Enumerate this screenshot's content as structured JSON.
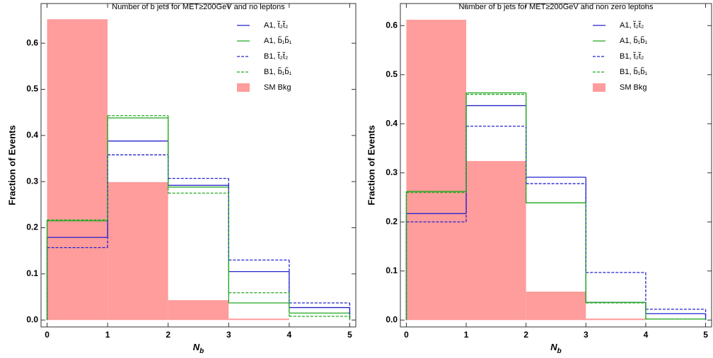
{
  "chart_data": [
    {
      "type": "histogram",
      "title": "Number of b jets for MET≥200GeV and no leptons",
      "x_label": "Nb",
      "y_label": "Fraction of Events",
      "bins": [
        0,
        1,
        2,
        3,
        4,
        5
      ],
      "xlim": [
        -0.1,
        5.1
      ],
      "xticks": [
        0,
        1,
        2,
        3,
        4,
        5
      ],
      "ylim": [
        -0.015,
        0.686
      ],
      "yticks": [
        {
          "value": 0,
          "label": "0.0"
        },
        0.1,
        0.2,
        0.3,
        0.4,
        0.5,
        0.6
      ],
      "legend": "top-right",
      "series": [
        {
          "name": "A1, t̃₂t̃₂",
          "color": "#2323cc",
          "style": "solid",
          "values": [
            0.179,
            0.388,
            0.292,
            0.105,
            0.027
          ]
        },
        {
          "name": "A1, b̃₁b̃₁",
          "color": "#22a822",
          "style": "solid",
          "values": [
            0.215,
            0.438,
            0.288,
            0.037,
            0.015
          ]
        },
        {
          "name": "B1, t̃₂t̃₂",
          "color": "#2323cc",
          "style": "dashed",
          "values": [
            0.157,
            0.358,
            0.307,
            0.13,
            0.037
          ]
        },
        {
          "name": "B1, b̃₁b̃₁",
          "color": "#22a822",
          "style": "dashed",
          "values": [
            0.217,
            0.443,
            0.275,
            0.059,
            0.008
          ]
        },
        {
          "name": "SM Bkg",
          "color": "#ff9c9c",
          "style": "filled",
          "values": [
            0.652,
            0.299,
            0.043,
            0.003,
            0
          ]
        }
      ]
    },
    {
      "type": "histogram",
      "title": "Number of b jets for MET≥200GeV and non zero leptons",
      "x_label": "Nb",
      "y_label": "Fraction of Events",
      "bins": [
        0,
        1,
        2,
        3,
        4,
        5
      ],
      "xlim": [
        -0.1,
        5.1
      ],
      "xticks": [
        0,
        1,
        2,
        3,
        4,
        5
      ],
      "ylim": [
        -0.014,
        0.645
      ],
      "yticks": [
        {
          "value": 0,
          "label": "0.0"
        },
        0.1,
        0.2,
        0.3,
        0.4,
        0.5,
        0.6
      ],
      "legend": "top-right",
      "series": [
        {
          "name": "A1, t̃₂t̃₂",
          "color": "#2323cc",
          "style": "solid",
          "values": [
            0.217,
            0.437,
            0.291,
            0.036,
            0.013
          ]
        },
        {
          "name": "A1, b̃₁b̃₁",
          "color": "#22a822",
          "style": "solid",
          "values": [
            0.262,
            0.463,
            0.239,
            0.036,
            0.002
          ]
        },
        {
          "name": "B1, t̃₂t̃₂",
          "color": "#2323cc",
          "style": "dashed",
          "values": [
            0.2,
            0.395,
            0.278,
            0.097,
            0.022
          ]
        },
        {
          "name": "B1, b̃₁b̃₁",
          "color": "#22a822",
          "style": "dashed",
          "values": [
            0.26,
            0.46,
            0.239,
            0.035,
            0.002
          ]
        },
        {
          "name": "SM Bkg",
          "color": "#ff9c9c",
          "style": "filled",
          "values": [
            0.612,
            0.324,
            0.058,
            0.003,
            0
          ]
        }
      ]
    }
  ]
}
